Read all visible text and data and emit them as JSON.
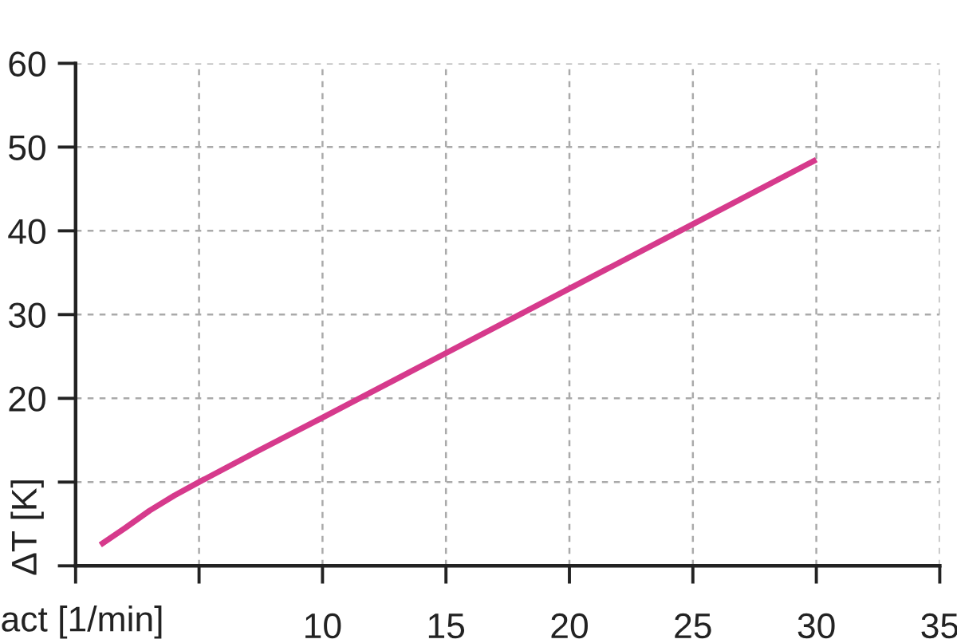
{
  "chart_data": {
    "type": "line",
    "xlabel": "act [1/min]",
    "ylabel": "ΔT [K]",
    "x": [
      1,
      2,
      3,
      4,
      5,
      7.5,
      10,
      15,
      20,
      25,
      30
    ],
    "series": [
      {
        "color": "#d63a8c",
        "values": [
          2.5,
          4.5,
          6.6,
          8.4,
          10,
          13.9,
          17.7,
          25.4,
          33.1,
          40.8,
          48.5
        ]
      }
    ],
    "xlim": [
      0,
      35
    ],
    "ylim": [
      0,
      60
    ],
    "xticks": [
      {
        "value": 0,
        "label": null
      },
      {
        "value": 5,
        "label": null
      },
      10,
      15,
      20,
      25,
      30,
      35
    ],
    "yticks": [
      {
        "value": 0,
        "label": null
      },
      {
        "value": 10,
        "label": null
      },
      20,
      30,
      40,
      50,
      60
    ],
    "grid": true,
    "line_style": "solid"
  }
}
